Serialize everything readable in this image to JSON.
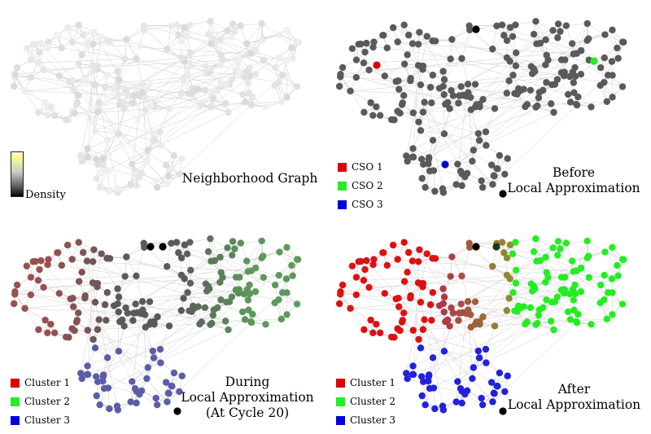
{
  "panels": [
    {
      "caption_lines": [
        "Neighborhood Graph"
      ],
      "legend": [],
      "density_label": "Density"
    },
    {
      "caption_lines": [
        "Before",
        "Local Approximation"
      ],
      "legend": [
        {
          "label": "CSO 1",
          "color": "#dd0000"
        },
        {
          "label": "CSO 2",
          "color": "#22ee22"
        },
        {
          "label": "CSO 3",
          "color": "#0000dd"
        }
      ]
    },
    {
      "caption_lines": [
        "During",
        "Local Approximation",
        "(At Cycle 20)"
      ],
      "legend": [
        {
          "label": "Cluster 1",
          "color": "#dd0000"
        },
        {
          "label": "Cluster 2",
          "color": "#22ee22"
        },
        {
          "label": "Cluster 3",
          "color": "#0000dd"
        }
      ]
    },
    {
      "caption_lines": [
        "After",
        "Local Approximation"
      ],
      "legend": [
        {
          "label": "Cluster 1",
          "color": "#dd0000"
        },
        {
          "label": "Cluster 2",
          "color": "#22ee22"
        },
        {
          "label": "Cluster 3",
          "color": "#0000dd"
        }
      ]
    }
  ],
  "colors": {
    "edge": "#cfcfcf",
    "light_node": "#d2d2d2",
    "dark_node": "#5a5a5a",
    "cluster1_during": "#9c4f4f",
    "cluster2_during": "#5c9a5c",
    "cluster3_during": "#5a5ea8",
    "cluster1_after": "#dd1111",
    "cluster2_after": "#22ee22",
    "cluster3_after": "#2222dd",
    "special_black": "#000000"
  }
}
